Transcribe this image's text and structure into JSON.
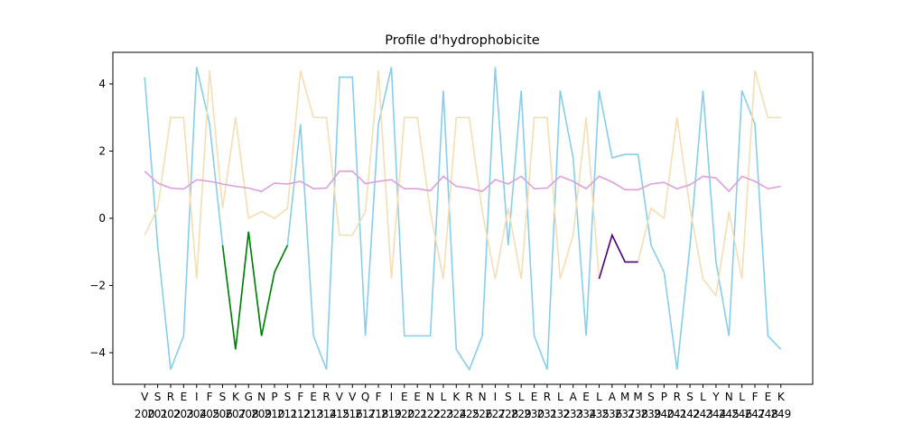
{
  "chart_data": {
    "type": "line",
    "title": "Profile d'hydrophobicite",
    "categories": [
      "V",
      "S",
      "R",
      "E",
      "I",
      "F",
      "S",
      "K",
      "G",
      "N",
      "P",
      "S",
      "F",
      "E",
      "R",
      "V",
      "V",
      "Q",
      "F",
      "I",
      "E",
      "E",
      "N",
      "L",
      "K",
      "R",
      "N",
      "I",
      "S",
      "L",
      "E",
      "R",
      "L",
      "A",
      "E",
      "L",
      "A",
      "M",
      "M",
      "S",
      "P",
      "R",
      "S",
      "L",
      "Y",
      "N",
      "L",
      "F",
      "E",
      "K"
    ],
    "positions": [
      200,
      201,
      202,
      203,
      204,
      205,
      206,
      207,
      208,
      209,
      210,
      211,
      212,
      213,
      214,
      215,
      216,
      217,
      218,
      219,
      220,
      221,
      222,
      223,
      224,
      225,
      226,
      227,
      228,
      229,
      230,
      231,
      232,
      233,
      234,
      235,
      236,
      237,
      238,
      239,
      240,
      241,
      242,
      243,
      244,
      245,
      246,
      247,
      248,
      249
    ],
    "series": [
      {
        "color": "#87ceeb",
        "values": [
          4.2,
          -0.8,
          -4.5,
          -3.5,
          4.5,
          2.8,
          -0.8,
          -3.9,
          -0.4,
          -3.5,
          -1.6,
          -0.8,
          2.8,
          -3.5,
          -4.5,
          4.2,
          4.2,
          -3.5,
          2.8,
          4.5,
          -3.5,
          -3.5,
          -3.5,
          3.8,
          -3.9,
          -4.5,
          -3.5,
          4.5,
          -0.8,
          3.8,
          -3.5,
          -4.5,
          3.8,
          1.8,
          -3.5,
          3.8,
          1.8,
          1.9,
          1.9,
          -0.8,
          -1.6,
          -4.5,
          -0.8,
          3.8,
          -1.3,
          -3.5,
          3.8,
          2.8,
          -3.5,
          -3.9
        ]
      },
      {
        "color": "#f5deb3",
        "values": [
          -0.5,
          0.3,
          3,
          3,
          -1.8,
          4.4,
          0.3,
          3,
          0,
          0.2,
          0,
          0.3,
          4.4,
          3,
          3,
          -0.5,
          -0.5,
          0.2,
          4.4,
          -1.8,
          3,
          3,
          0.2,
          -1.8,
          3,
          3,
          0.2,
          -1.8,
          0.3,
          -1.8,
          3,
          3,
          -1.8,
          -0.5,
          3,
          -1.8,
          -0.5,
          -1.3,
          -1.3,
          0.3,
          0,
          3,
          0.3,
          -1.8,
          -2.3,
          0.2,
          -1.8,
          4.4,
          3,
          3
        ]
      },
      {
        "color": "#dda0dd",
        "values": [
          1.4,
          1.05,
          0.9,
          0.87,
          1.15,
          1.1,
          1.02,
          0.95,
          0.9,
          0.8,
          1.05,
          1.02,
          1.1,
          0.88,
          0.9,
          1.4,
          1.4,
          1.03,
          1.1,
          1.15,
          0.88,
          0.88,
          0.82,
          1.25,
          0.95,
          0.9,
          0.8,
          1.15,
          1.02,
          1.25,
          0.88,
          0.9,
          1.25,
          1.1,
          0.88,
          1.25,
          1.08,
          0.85,
          0.85,
          1.02,
          1.07,
          0.88,
          1.0,
          1.25,
          1.2,
          0.8,
          1.25,
          1.1,
          0.88,
          0.95
        ]
      },
      {
        "color": "#008000",
        "values": [
          null,
          null,
          null,
          null,
          null,
          null,
          -0.8,
          -3.9,
          -0.4,
          -3.5,
          -1.6,
          -0.8,
          null,
          null,
          null,
          null,
          null,
          null,
          null,
          null,
          null,
          null,
          null,
          null,
          null,
          null,
          null,
          null,
          null,
          null,
          null,
          null,
          null,
          null,
          null,
          null,
          null,
          null,
          null,
          null,
          null,
          null,
          null,
          null,
          null,
          null,
          null,
          null,
          null,
          null
        ]
      },
      {
        "color": "#4b0082",
        "values": [
          null,
          null,
          null,
          null,
          null,
          null,
          null,
          null,
          null,
          null,
          null,
          null,
          null,
          null,
          null,
          null,
          null,
          null,
          null,
          null,
          null,
          null,
          null,
          null,
          null,
          null,
          null,
          null,
          null,
          null,
          null,
          null,
          null,
          null,
          null,
          -1.8,
          -0.5,
          -1.3,
          -1.3,
          null,
          null,
          null,
          null,
          null,
          null,
          null,
          null,
          null,
          null,
          null
        ]
      }
    ],
    "ylim": [
      -4.94,
      4.94
    ],
    "yticks": [
      {
        "value": -4,
        "label": "−4"
      },
      {
        "value": -2,
        "label": "−2"
      },
      0,
      2,
      4
    ]
  }
}
